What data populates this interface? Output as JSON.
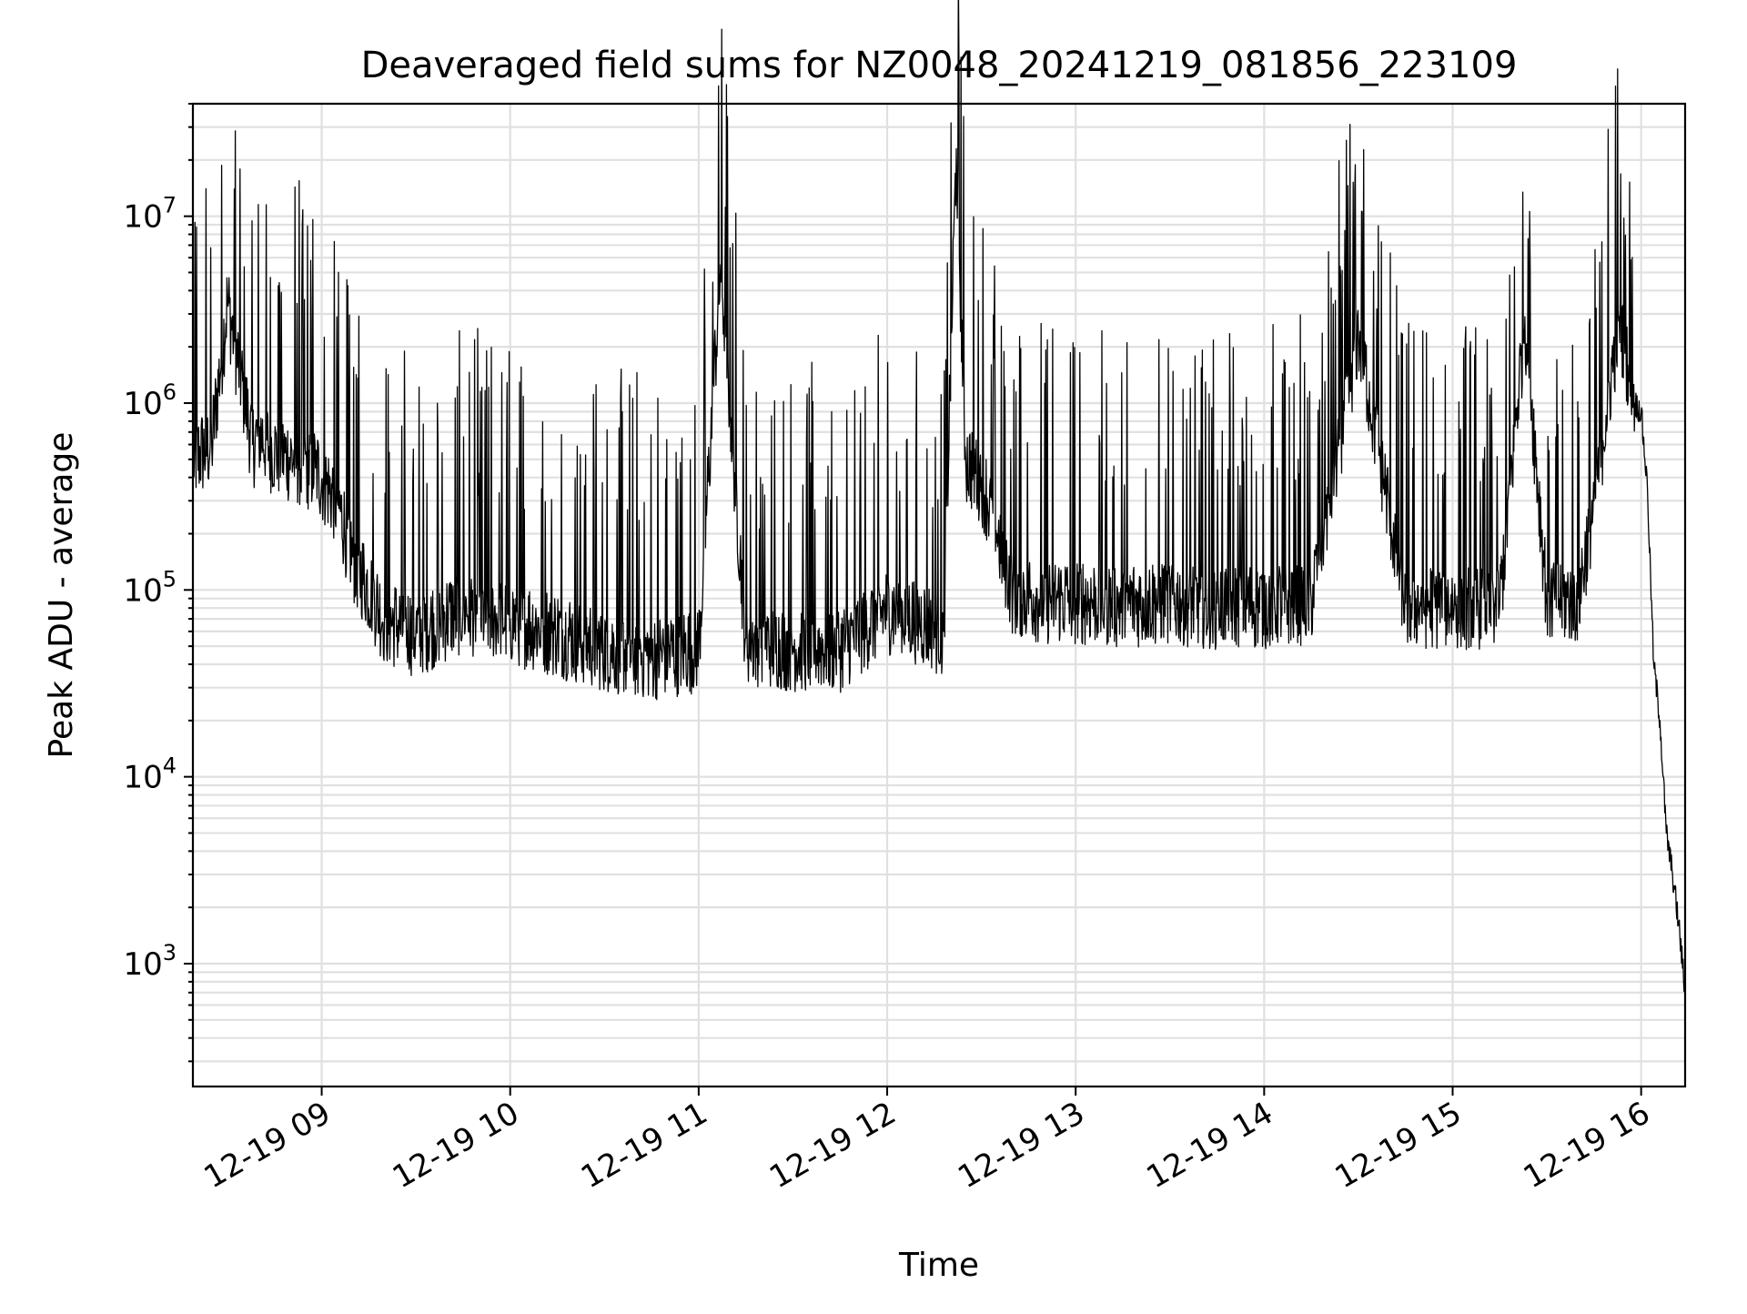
{
  "chart_data": {
    "type": "line",
    "title": "Deaveraged field sums for NZ0048_20241219_081856_223109",
    "xlabel": "Time",
    "ylabel": "Peak ADU - average",
    "y_scale": "log",
    "ylim": [
      220,
      40000000
    ],
    "xlim": [
      "2024-12-19 08:19",
      "2024-12-19 16:14"
    ],
    "grid": true,
    "x_tick_labels": [
      "12-19 09",
      "12-19 10",
      "12-19 11",
      "12-19 12",
      "12-19 13",
      "12-19 14",
      "12-19 15",
      "12-19 16"
    ],
    "x_ticks": [
      "2024-12-19 09:00",
      "2024-12-19 10:00",
      "2024-12-19 11:00",
      "2024-12-19 12:00",
      "2024-12-19 13:00",
      "2024-12-19 14:00",
      "2024-12-19 15:00",
      "2024-12-19 16:00"
    ],
    "y_ticks": [
      1000,
      10000,
      100000,
      1000000,
      10000000
    ],
    "y_tick_labels": [
      {
        "base": "10",
        "exp": "3"
      },
      {
        "base": "10",
        "exp": "4"
      },
      {
        "base": "10",
        "exp": "5"
      },
      {
        "base": "10",
        "exp": "6"
      },
      {
        "base": "10",
        "exp": "7"
      }
    ],
    "series_color": "#000000",
    "series": [
      {
        "x": [
          "2024-12-19 08:19",
          "2024-12-19 08:25",
          "2024-12-19 08:30",
          "2024-12-19 08:38",
          "2024-12-19 08:40",
          "2024-12-19 08:45",
          "2024-12-19 08:52",
          "2024-12-19 08:58",
          "2024-12-19 09:05",
          "2024-12-19 09:10",
          "2024-12-19 09:20",
          "2024-12-19 09:30",
          "2024-12-19 09:45",
          "2024-12-19 10:00",
          "2024-12-19 10:15",
          "2024-12-19 10:30",
          "2024-12-19 10:45",
          "2024-12-19 11:00",
          "2024-12-19 11:07",
          "2024-12-19 11:15",
          "2024-12-19 11:30",
          "2024-12-19 11:45",
          "2024-12-19 12:00",
          "2024-12-19 12:10",
          "2024-12-19 12:18",
          "2024-12-19 12:22",
          "2024-12-19 12:25",
          "2024-12-19 12:30",
          "2024-12-19 12:35",
          "2024-12-19 12:40",
          "2024-12-19 12:50",
          "2024-12-19 13:00",
          "2024-12-19 13:15",
          "2024-12-19 13:30",
          "2024-12-19 13:45",
          "2024-12-19 14:00",
          "2024-12-19 14:15",
          "2024-12-19 14:30",
          "2024-12-19 14:45",
          "2024-12-19 15:00",
          "2024-12-19 15:15",
          "2024-12-19 15:23",
          "2024-12-19 15:30",
          "2024-12-19 15:40",
          "2024-12-19 15:45",
          "2024-12-19 15:53",
          "2024-12-19 15:58",
          "2024-12-19 16:00",
          "2024-12-19 16:02",
          "2024-12-19 16:04",
          "2024-12-19 16:06",
          "2024-12-19 16:08",
          "2024-12-19 16:10",
          "2024-12-19 16:12",
          "2024-12-19 16:14"
        ],
        "y": [
          500000,
          600000,
          3500000,
          600000,
          700000,
          550000,
          500000,
          450000,
          300000,
          150000,
          70000,
          60000,
          80000,
          70000,
          60000,
          50000,
          45000,
          50000,
          5500000,
          55000,
          50000,
          50000,
          80000,
          70000,
          60000,
          23000000,
          500000,
          400000,
          200000,
          100000,
          90000,
          90000,
          85000,
          90000,
          85000,
          85000,
          90000,
          2400000,
          85000,
          85000,
          85000,
          2900000,
          90000,
          90000,
          300000,
          2900000,
          1000000,
          900000,
          350000,
          40000,
          20000,
          5000,
          3000,
          1600,
          700
        ]
      }
    ]
  }
}
